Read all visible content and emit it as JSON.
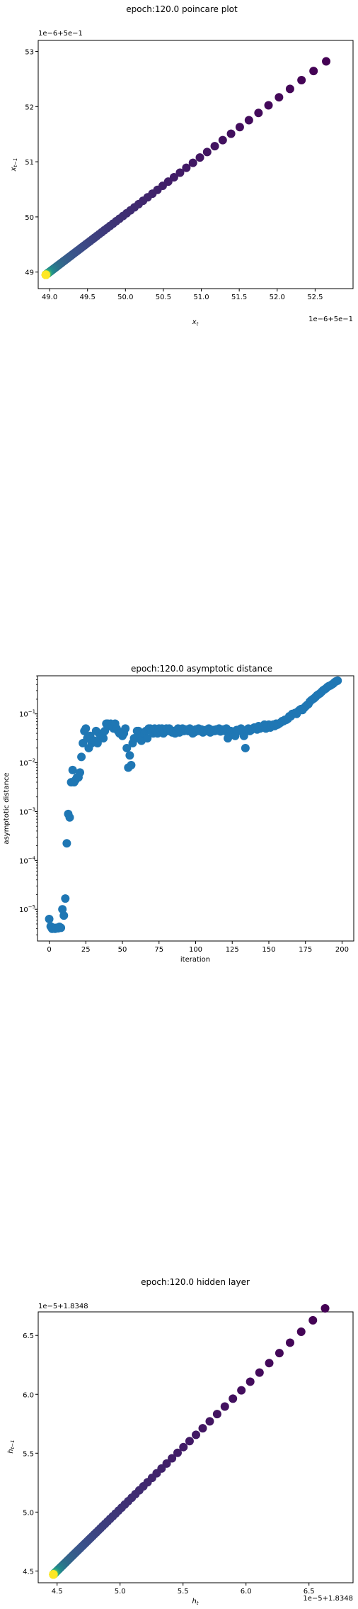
{
  "chart_data": [
    {
      "type": "scatter",
      "title": "epoch:120.0 poincare plot",
      "xlabel": "x_t",
      "ylabel": "x_{t-1}",
      "x_offset_text": "1e−6+5e−1",
      "y_offset_text": "1e−6+5e−1",
      "xlim": [
        48.85,
        53.0
      ],
      "ylim": [
        48.7,
        53.2
      ],
      "xticks": [
        49.0,
        49.5,
        50.0,
        50.5,
        51.0,
        51.5,
        52.0,
        52.5
      ],
      "xtick_labels": [
        "49.0",
        "49.5",
        "50.0",
        "50.5",
        "51.0",
        "51.5",
        "52.0",
        "52.5"
      ],
      "yticks": [
        49,
        50,
        51,
        52,
        53
      ],
      "ytick_labels": [
        "49",
        "50",
        "51",
        "52",
        "53"
      ],
      "grid": false,
      "colormap": "viridis",
      "point_count": 200,
      "x_end": 48.95,
      "x_start": 52.82
    },
    {
      "type": "scatter",
      "title": "epoch:120.0 asymptotic distance",
      "xlabel": "iteration",
      "ylabel": "asymptotic distance",
      "y_scale": "log",
      "xlim": [
        -8,
        208
      ],
      "ylim_exponent": [
        -5.65,
        -0.22
      ],
      "xticks": [
        0,
        25,
        50,
        75,
        100,
        125,
        150,
        175,
        200
      ],
      "xtick_labels": [
        "0",
        "25",
        "50",
        "75",
        "100",
        "125",
        "150",
        "175",
        "200"
      ],
      "yticks_exponent": [
        -5,
        -4,
        -3,
        -2,
        -1
      ],
      "ytick_labels": [
        "10",
        "10",
        "10",
        "10",
        "10"
      ],
      "ytick_exponent_labels": [
        "−5",
        "−4",
        "−3",
        "−2",
        "−1"
      ],
      "grid": false,
      "color": "#1f77b4",
      "x": [
        0,
        1,
        2,
        3,
        4,
        5,
        6,
        7,
        8,
        9,
        10,
        11,
        12,
        13,
        14,
        15,
        16,
        17,
        18,
        19,
        20,
        21,
        22,
        23,
        24,
        25,
        26,
        27,
        28,
        29,
        30,
        31,
        32,
        33,
        34,
        35,
        36,
        37,
        38,
        39,
        40,
        41,
        42,
        43,
        44,
        45,
        46,
        47,
        48,
        49,
        50,
        51,
        52,
        53,
        54,
        55,
        56,
        57,
        58,
        59,
        60,
        61,
        62,
        63,
        64,
        65,
        66,
        67,
        68,
        69,
        70,
        71,
        72,
        73,
        74,
        75,
        76,
        77,
        78,
        79,
        80,
        81,
        82,
        83,
        84,
        85,
        86,
        87,
        88,
        89,
        90,
        91,
        92,
        93,
        94,
        95,
        96,
        97,
        98,
        99,
        100,
        101,
        102,
        103,
        104,
        105,
        106,
        107,
        108,
        109,
        110,
        111,
        112,
        113,
        114,
        115,
        116,
        117,
        118,
        119,
        120,
        121,
        122,
        123,
        124,
        125,
        126,
        127,
        128,
        129,
        130,
        131,
        132,
        133,
        134,
        135,
        136,
        137,
        138,
        139,
        140,
        141,
        142,
        143,
        144,
        145,
        146,
        147,
        148,
        149,
        150,
        151,
        152,
        153,
        154,
        155,
        156,
        157,
        158,
        159,
        160,
        161,
        162,
        163,
        164,
        165,
        166,
        167,
        168,
        169,
        170,
        171,
        172,
        173,
        174,
        175,
        176,
        177,
        178,
        179,
        180,
        181,
        182,
        183,
        184,
        185,
        186,
        187,
        188,
        189,
        190,
        191,
        192,
        193,
        194,
        195,
        196,
        197,
        198,
        199
      ],
      "log10_y": [
        -5.2,
        -5.35,
        -5.4,
        -5.38,
        -5.4,
        -5.38,
        -5.39,
        -5.36,
        -5.38,
        -5.0,
        -5.13,
        -4.78,
        -3.65,
        -3.05,
        -3.12,
        -2.4,
        -2.15,
        -2.4,
        -2.35,
        -2.3,
        -2.3,
        -2.2,
        -1.88,
        -1.6,
        -1.35,
        -1.3,
        -1.5,
        -1.7,
        -1.45,
        -1.6,
        -1.55,
        -1.55,
        -1.35,
        -1.6,
        -1.4,
        -1.5,
        -1.45,
        -1.5,
        -1.35,
        -1.2,
        -1.2,
        -1.25,
        -1.2,
        -1.25,
        -1.3,
        -1.2,
        -1.3,
        -1.35,
        -1.4,
        -1.4,
        -1.45,
        -1.4,
        -1.3,
        -1.7,
        -2.1,
        -1.85,
        -2.05,
        -1.6,
        -1.5,
        -1.5,
        -1.35,
        -1.35,
        -1.5,
        -1.55,
        -1.4,
        -1.4,
        -1.35,
        -1.5,
        -1.3,
        -1.3,
        -1.35,
        -1.4,
        -1.3,
        -1.35,
        -1.4,
        -1.3,
        -1.35,
        -1.3,
        -1.4,
        -1.35,
        -1.3,
        -1.35,
        -1.3,
        -1.35,
        -1.38,
        -1.35,
        -1.4,
        -1.35,
        -1.3,
        -1.38,
        -1.35,
        -1.3,
        -1.35,
        -1.32,
        -1.33,
        -1.35,
        -1.3,
        -1.35,
        -1.4,
        -1.38,
        -1.32,
        -1.35,
        -1.3,
        -1.35,
        -1.32,
        -1.38,
        -1.36,
        -1.33,
        -1.35,
        -1.3,
        -1.38,
        -1.36,
        -1.33,
        -1.35,
        -1.32,
        -1.34,
        -1.3,
        -1.36,
        -1.33,
        -1.32,
        -1.35,
        -1.3,
        -1.5,
        -1.45,
        -1.35,
        -1.4,
        -1.42,
        -1.45,
        -1.33,
        -1.35,
        -1.32,
        -1.3,
        -1.35,
        -1.45,
        -1.7,
        -1.35,
        -1.3,
        -1.35,
        -1.33,
        -1.3,
        -1.28,
        -1.3,
        -1.32,
        -1.25,
        -1.3,
        -1.28,
        -1.25,
        -1.22,
        -1.3,
        -1.25,
        -1.22,
        -1.28,
        -1.25,
        -1.22,
        -1.25,
        -1.2,
        -1.22,
        -1.2,
        -1.18,
        -1.15,
        -1.15,
        -1.12,
        -1.12,
        -1.1,
        -1.05,
        -1.05,
        -1.0,
        -1.0,
        -0.98,
        -1.0,
        -0.95,
        -0.92,
        -0.9,
        -0.92,
        -0.88,
        -0.85,
        -0.82,
        -0.8,
        -0.75,
        -0.72,
        -0.7,
        -0.68,
        -0.65,
        -0.62,
        -0.6,
        -0.58,
        -0.55,
        -0.52,
        -0.5,
        -0.48,
        -0.45,
        -0.43,
        -0.42,
        -0.4,
        -0.38,
        -0.35,
        -0.33,
        -0.32
      ]
    },
    {
      "type": "scatter",
      "title": "epoch:120.0 hidden layer",
      "xlabel": "h_t",
      "ylabel": "h_{t-1}",
      "x_offset_text": "1e−5+1.8348",
      "y_offset_text": "1e−5+1.8348",
      "xlim": [
        4.35,
        6.85
      ],
      "ylim": [
        4.4,
        6.7
      ],
      "xticks": [
        4.5,
        5.0,
        5.5,
        6.0,
        6.5
      ],
      "xtick_labels": [
        "4.5",
        "5.0",
        "5.5",
        "6.0",
        "6.5"
      ],
      "yticks": [
        4.5,
        5.0,
        5.5,
        6.0,
        6.5
      ],
      "ytick_labels": [
        "4.5",
        "5.0",
        "5.5",
        "6.0",
        "6.5"
      ],
      "grid": false,
      "colormap": "viridis",
      "point_count": 200,
      "x_end": 4.47,
      "x_start": 6.73
    }
  ]
}
